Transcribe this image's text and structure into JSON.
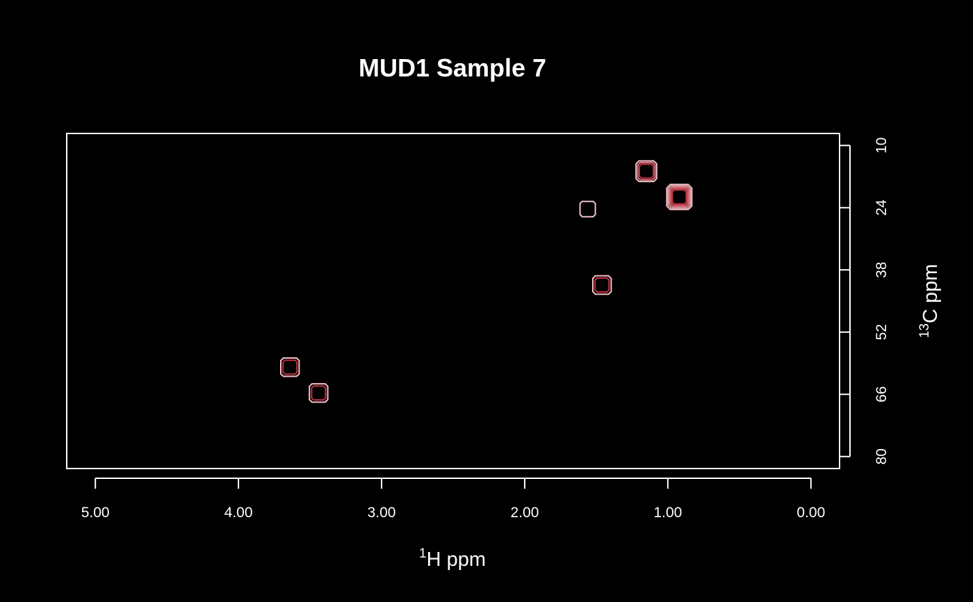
{
  "chart_data": {
    "type": "contour",
    "title": "MUD1 Sample 7",
    "xlabel": {
      "superscript": "1",
      "text": "H ppm"
    },
    "ylabel": {
      "superscript": "13",
      "text": "C ppm"
    },
    "x_ticks": [
      5.0,
      4.0,
      3.0,
      2.0,
      1.0,
      0.0
    ],
    "x_tick_labels": [
      "5.00",
      "4.00",
      "3.00",
      "2.00",
      "1.00",
      "0.00"
    ],
    "y_ticks": [
      10,
      24,
      38,
      52,
      66,
      80
    ],
    "y_tick_labels": [
      "10",
      "24",
      "38",
      "52",
      "66",
      "80"
    ],
    "xlim": [
      5.2,
      -0.2
    ],
    "ylim": [
      7.3,
      82.7
    ],
    "x_reversed": true,
    "y_reversed": true,
    "grid": false,
    "peaks": [
      {
        "h_ppm": 1.15,
        "c_ppm": 15.8,
        "levels": 3
      },
      {
        "h_ppm": 0.92,
        "c_ppm": 21.6,
        "levels": 5
      },
      {
        "h_ppm": 1.56,
        "c_ppm": 24.3,
        "levels": 1
      },
      {
        "h_ppm": 1.46,
        "c_ppm": 41.4,
        "levels": 2
      },
      {
        "h_ppm": 3.64,
        "c_ppm": 59.9,
        "levels": 2
      },
      {
        "h_ppm": 3.44,
        "c_ppm": 65.7,
        "levels": 2
      }
    ],
    "colors": {
      "background": "#000000",
      "foreground": "#ffffff",
      "contour_outer": "#f2c2c8",
      "contour_inner": "#c0303f"
    }
  }
}
